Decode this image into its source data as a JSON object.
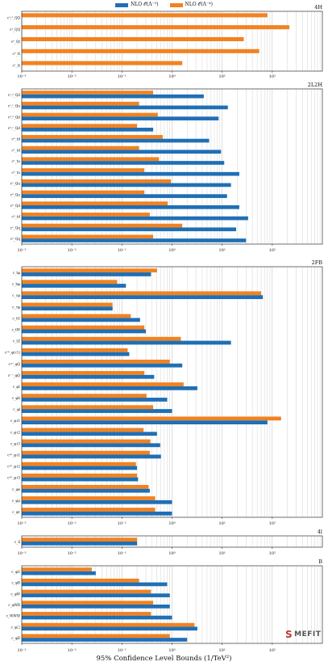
{
  "colors": {
    "nlo2": "#1f6fb5",
    "nlo4": "#f28220",
    "grid": "#c8c8c8",
    "frame": "#333333"
  },
  "legend": [
    {
      "label": "NLO 𝒪(Λ⁻²)",
      "color_key": "nlo2"
    },
    {
      "label": "NLO 𝒪(Λ⁻⁴)",
      "color_key": "nlo4"
    }
  ],
  "x_axis_title": "95% Confidence Level Bounds (1/TeV²)",
  "logo_text": "MEFIT",
  "chart_data": [
    {
      "type": "bar",
      "orientation": "horizontal",
      "title": "4H",
      "xscale": "log",
      "xlim": [
        0.001,
        1000
      ],
      "xticks": [
        "10⁻³",
        "10⁻²",
        "10⁻¹",
        "10⁰",
        "10¹",
        "10²"
      ],
      "grid": true,
      "categories": [
        "c¹,⁸_QQ",
        "c⁸_QQ",
        "c⁸_Qt",
        "c⁸_tt",
        "c¹_tt"
      ],
      "series": [
        {
          "name": "NLO 𝒪(Λ⁻²)",
          "values": [
            null,
            null,
            null,
            null,
            null
          ]
        },
        {
          "name": "NLO 𝒪(Λ⁻⁴)",
          "values": [
            80,
            220,
            27,
            55,
            1.6
          ]
        }
      ]
    },
    {
      "type": "bar",
      "orientation": "horizontal",
      "title": "2L2H",
      "xscale": "log",
      "xlim": [
        0.001,
        1000
      ],
      "xticks": [
        "10⁻³",
        "10⁻²",
        "10⁻¹",
        "10⁰",
        "10¹",
        "10²"
      ],
      "grid": true,
      "categories": [
        "c¹,⁸_Qd",
        "c¹,¹_Qu",
        "c⁸,⁸_Qd",
        "c⁸,¹_Qd",
        "c⁸_td",
        "c¹_td",
        "c¹_tu",
        "c⁸_tu",
        "c¹_Qu",
        "c⁸_Qu",
        "c⁸_Qd",
        "c⁸_td",
        "c¹_Qq",
        "c⁸_Qq"
      ],
      "series": [
        {
          "name": "NLO 𝒪(Λ⁻²)",
          "values": [
            4.3,
            13,
            8.5,
            0.42,
            5.5,
            9.5,
            11,
            22,
            15,
            12.5,
            22,
            33,
            19,
            30
          ]
        },
        {
          "name": "NLO 𝒪(Λ⁻⁴)",
          "values": [
            0.42,
            0.22,
            0.52,
            0.2,
            0.65,
            0.22,
            0.55,
            0.28,
            0.95,
            0.28,
            0.82,
            0.36,
            1.6,
            0.42
          ]
        }
      ]
    },
    {
      "type": "bar",
      "orientation": "horizontal",
      "title": "2FB",
      "xscale": "log",
      "xlim": [
        0.001,
        1000
      ],
      "xticks": [
        "10⁻³",
        "10⁻²",
        "10⁻¹",
        "10⁰",
        "10¹",
        "10²"
      ],
      "grid": true,
      "categories": [
        "c_tφ",
        "c_bφ",
        "c_cφ",
        "c_τφ",
        "c_tG",
        "c_tW",
        "c_tZ",
        "c⁽³⁾_φ(ℓ1)",
        "c⁽³⁾_φQ",
        "c⁽⁻⁾_φQ",
        "c_φt",
        "c_φb",
        "c_φl",
        "c_φℓ1",
        "c_φℓ2",
        "c_φℓ3",
        "c⁽³⁾_φℓ1",
        "c⁽³⁾_φℓ2",
        "c⁽³⁾_φℓ3",
        "c_φe",
        "c_φμ",
        "c_φτ"
      ],
      "series": [
        {
          "name": "NLO 𝒪(Λ⁻²)",
          "values": [
            0.38,
            0.12,
            65,
            0.065,
            0.23,
            0.3,
            15,
            0.14,
            1.6,
            0.44,
            3.2,
            0.8,
            1.0,
            80,
            0.5,
            0.58,
            0.6,
            0.2,
            0.21,
            0.36,
            1.0,
            1.0
          ]
        },
        {
          "name": "NLO 𝒪(Λ⁻⁴)",
          "values": [
            0.5,
            0.08,
            60,
            0.065,
            0.15,
            0.28,
            1.5,
            0.13,
            0.9,
            0.28,
            1.7,
            0.31,
            0.42,
            150,
            0.27,
            0.37,
            0.36,
            0.19,
            0.2,
            0.34,
            0.46,
            0.46
          ]
        }
      ]
    },
    {
      "type": "bar",
      "orientation": "horizontal",
      "title": "4l",
      "xscale": "log",
      "xlim": [
        0.001,
        1000
      ],
      "xticks": [
        "10⁻³",
        "10⁻²",
        "10⁻¹",
        "10⁰",
        "10¹",
        "10²"
      ],
      "grid": true,
      "categories": [
        "c_ll"
      ],
      "series": [
        {
          "name": "NLO 𝒪(Λ⁻²)",
          "values": [
            0.2
          ]
        },
        {
          "name": "NLO 𝒪(Λ⁻⁴)",
          "values": [
            0.2
          ]
        }
      ]
    },
    {
      "type": "bar",
      "orientation": "horizontal",
      "title": "B",
      "xscale": "log",
      "xlim": [
        0.001,
        1000
      ],
      "xticks": [
        "10⁻³",
        "10⁻²",
        "10⁻¹",
        "10⁰",
        "10¹",
        "10²"
      ],
      "grid": true,
      "categories": [
        "c_φG",
        "c_φB",
        "c_φW",
        "c_φWB",
        "c_WWW",
        "c_φ□",
        "c_φD"
      ],
      "series": [
        {
          "name": "NLO 𝒪(Λ⁻²)",
          "values": [
            0.03,
            0.8,
            0.9,
            0.9,
            1.0,
            3.2,
            2.0
          ]
        },
        {
          "name": "NLO 𝒪(Λ⁻⁴)",
          "values": [
            0.025,
            0.22,
            0.38,
            0.42,
            0.38,
            2.8,
            0.9
          ]
        }
      ]
    }
  ]
}
